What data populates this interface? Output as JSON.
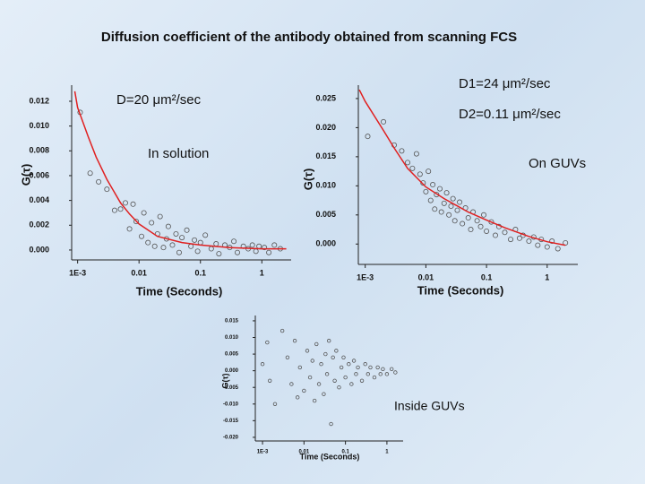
{
  "slide": {
    "title": "Diffusion coefficient of the antibody obtained from scanning FCS"
  },
  "chart_data": [
    {
      "type": "scatter",
      "xlabel": "Time (Seconds)",
      "ylabel": "G(τ)",
      "log_x": true,
      "xlim": [
        0.0008,
        3
      ],
      "xticks": [
        {
          "value": 0.001,
          "label": "1E-3"
        },
        0.01,
        0.1,
        1
      ],
      "ylim": [
        -0.0008,
        0.0133
      ],
      "yticks": [
        {
          "value": 0,
          "label": "0.000"
        },
        0.002,
        0.004,
        0.006,
        0.008,
        {
          "value": 0.01,
          "label": "0.010"
        },
        0.012
      ],
      "marker_color": "#555555",
      "x": [
        0.0011,
        0.0016,
        0.0022,
        0.003,
        0.004,
        0.005,
        0.006,
        0.007,
        0.008,
        0.009,
        0.011,
        0.012,
        0.014,
        0.016,
        0.018,
        0.02,
        0.022,
        0.025,
        0.028,
        0.03,
        0.035,
        0.04,
        0.045,
        0.05,
        0.06,
        0.07,
        0.08,
        0.09,
        0.1,
        0.12,
        0.15,
        0.18,
        0.2,
        0.25,
        0.3,
        0.35,
        0.4,
        0.5,
        0.6,
        0.7,
        0.8,
        0.9,
        1.1,
        1.3,
        1.6,
        2
      ],
      "values": [
        0.0111,
        0.0062,
        0.0055,
        0.0049,
        0.0032,
        0.0033,
        0.0038,
        0.0017,
        0.0037,
        0.0023,
        0.0011,
        0.003,
        0.0006,
        0.0022,
        0.0003,
        0.0013,
        0.0027,
        0.0002,
        0.0009,
        0.0019,
        0.0004,
        0.0013,
        -0.0002,
        0.001,
        0.0016,
        0.0003,
        0.0008,
        -0.0001,
        0.0006,
        0.0012,
        0.0001,
        0.0005,
        -0.0003,
        0.0004,
        0.0002,
        0.0007,
        -0.0002,
        0.0003,
        0.0001,
        0.0004,
        -0.0001,
        0.0003,
        0.0002,
        -0.0002,
        0.0004,
        0.0001
      ],
      "fit": {
        "color": "#e02020",
        "x": [
          0.0009,
          0.001,
          0.0015,
          0.002,
          0.003,
          0.005,
          0.007,
          0.01,
          0.02,
          0.05,
          0.1,
          0.3,
          1,
          2.5
        ],
        "values": [
          0.0128,
          0.0115,
          0.0091,
          0.0075,
          0.0057,
          0.0038,
          0.0029,
          0.0021,
          0.0011,
          0.0006,
          0.0004,
          0.0002,
          0.0001,
          0.0001
        ]
      },
      "annotations": [
        "D=20 μm²/sec",
        "In solution"
      ]
    },
    {
      "type": "scatter",
      "xlabel": "Time (Seconds)",
      "ylabel": "G(τ)",
      "log_x": true,
      "xlim": [
        0.00077,
        3.2
      ],
      "xticks": [
        {
          "value": 0.001,
          "label": "1E-3"
        },
        0.01,
        0.1,
        1
      ],
      "ylim": [
        -0.0035,
        0.0273
      ],
      "yticks": [
        {
          "value": 0,
          "label": "0.000"
        },
        0.005,
        {
          "value": 0.01,
          "label": "0.010"
        },
        0.015,
        {
          "value": 0.02,
          "label": "0.020"
        },
        0.025
      ],
      "marker_color": "#555555",
      "x": [
        0.0011,
        0.002,
        0.003,
        0.004,
        0.005,
        0.006,
        0.007,
        0.008,
        0.009,
        0.01,
        0.011,
        0.012,
        0.013,
        0.014,
        0.015,
        0.017,
        0.018,
        0.02,
        0.022,
        0.024,
        0.026,
        0.028,
        0.03,
        0.033,
        0.036,
        0.04,
        0.045,
        0.05,
        0.055,
        0.06,
        0.07,
        0.08,
        0.09,
        0.1,
        0.12,
        0.14,
        0.16,
        0.2,
        0.25,
        0.3,
        0.35,
        0.4,
        0.5,
        0.6,
        0.7,
        0.8,
        1,
        1.2,
        1.5,
        2
      ],
      "values": [
        0.0185,
        0.021,
        0.017,
        0.016,
        0.014,
        0.013,
        0.0155,
        0.012,
        0.0105,
        0.009,
        0.0125,
        0.0075,
        0.0102,
        0.006,
        0.0085,
        0.0095,
        0.0055,
        0.007,
        0.0088,
        0.005,
        0.0065,
        0.0078,
        0.004,
        0.0058,
        0.0072,
        0.0035,
        0.0062,
        0.0045,
        0.0025,
        0.0055,
        0.004,
        0.003,
        0.005,
        0.0022,
        0.0038,
        0.0015,
        0.003,
        0.002,
        0.0008,
        0.0025,
        0.001,
        0.0015,
        0.0005,
        0.0012,
        -0.0002,
        0.0008,
        -0.0005,
        0.0005,
        -0.0008,
        0.0002
      ],
      "fit": {
        "color": "#e02020",
        "x": [
          0.0008,
          0.001,
          0.002,
          0.003,
          0.005,
          0.01,
          0.02,
          0.05,
          0.1,
          0.2,
          0.5,
          1,
          2
        ],
        "values": [
          0.0265,
          0.0245,
          0.0195,
          0.0165,
          0.013,
          0.0098,
          0.0078,
          0.0055,
          0.0041,
          0.0028,
          0.0013,
          0.0004,
          -0.0002
        ]
      },
      "annotations": [
        "D1=24 μm²/sec",
        "D2=0.11 μm²/sec",
        "On GUVs"
      ]
    },
    {
      "type": "scatter",
      "xlabel": "Time (Seconds)",
      "ylabel": "G(τ)",
      "log_x": true,
      "xlim": [
        0.00067,
        2.46
      ],
      "xticks": [
        {
          "value": 0.001,
          "label": "1E-3"
        },
        0.01,
        0.1,
        1
      ],
      "ylim": [
        -0.0211,
        0.0166
      ],
      "yticks": [
        0.015,
        {
          "value": 0.01,
          "label": "0.010"
        },
        0.005,
        {
          "value": 0,
          "label": "0.000"
        },
        -0.005,
        {
          "value": -0.01,
          "label": "-0.010"
        },
        -0.015,
        {
          "value": -0.02,
          "label": "-0.020"
        }
      ],
      "marker_color": "#555555",
      "x": [
        0.001,
        0.0013,
        0.0015,
        0.002,
        0.003,
        0.004,
        0.005,
        0.006,
        0.007,
        0.008,
        0.01,
        0.012,
        0.014,
        0.016,
        0.018,
        0.02,
        0.023,
        0.026,
        0.03,
        0.033,
        0.036,
        0.04,
        0.045,
        0.05,
        0.055,
        0.06,
        0.07,
        0.08,
        0.09,
        0.1,
        0.12,
        0.14,
        0.16,
        0.18,
        0.2,
        0.25,
        0.3,
        0.35,
        0.4,
        0.5,
        0.6,
        0.7,
        0.8,
        1,
        1.3,
        1.6
      ],
      "values": [
        0.002,
        0.0085,
        -0.003,
        -0.01,
        0.012,
        0.004,
        -0.004,
        0.009,
        -0.008,
        0.001,
        -0.006,
        0.006,
        -0.002,
        0.003,
        -0.009,
        0.008,
        -0.004,
        0.002,
        -0.007,
        0.005,
        -0.001,
        0.009,
        -0.016,
        0.004,
        -0.003,
        0.006,
        -0.005,
        0.001,
        0.004,
        -0.002,
        0.002,
        -0.004,
        0.003,
        -0.001,
        0.001,
        -0.003,
        0.002,
        -0.001,
        0.001,
        -0.002,
        0.001,
        -0.001,
        0.0005,
        -0.001,
        0.0005,
        -0.0005
      ],
      "annotations": [
        "Inside GUVs"
      ]
    }
  ]
}
